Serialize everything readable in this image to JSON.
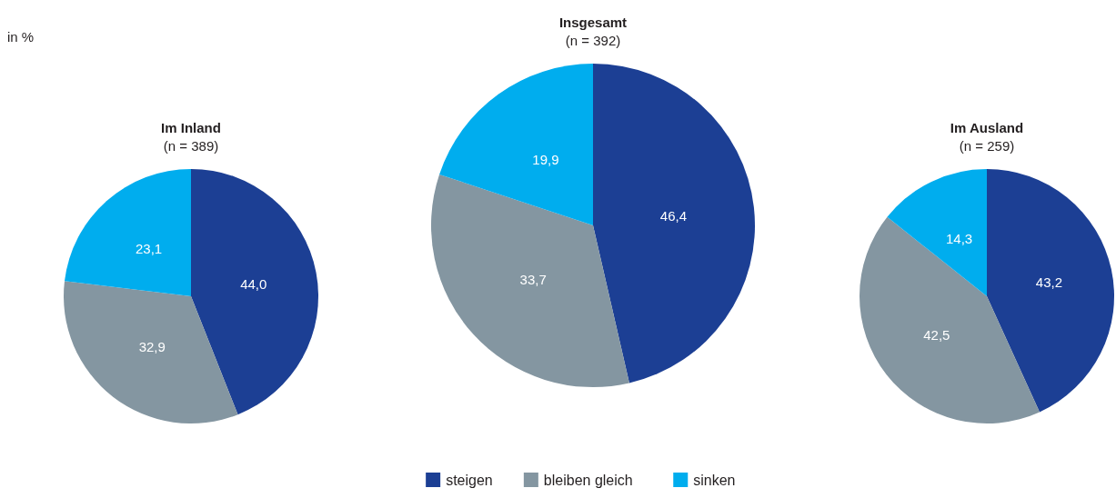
{
  "chart_data": [
    {
      "type": "pie",
      "title": "Im Inland",
      "subtitle": "(n = 389)",
      "categories": [
        null,
        null,
        null
      ],
      "values": [
        44.0,
        32.9,
        23.1
      ],
      "value_labels": [
        "44,0",
        "32,9",
        "23,1"
      ],
      "colors": [
        "#1c3f94",
        "#8496a1",
        "#00adee"
      ],
      "annotations": [
        "in %"
      ]
    },
    {
      "type": "pie",
      "title": "Insgesamt",
      "subtitle": "(n = 392)",
      "categories": [
        "steigen",
        "bleiben gleich",
        "sinken"
      ],
      "values": [
        46.4,
        33.7,
        19.9
      ],
      "value_labels": [
        "46,4",
        "33,7",
        "19,9"
      ],
      "colors": [
        "#1c3f94",
        "#8496a1",
        "#00adee"
      ],
      "legend": "bottom"
    },
    {
      "type": "pie",
      "title": "Im Ausland",
      "subtitle": "(n = 259)",
      "categories": [
        null,
        null,
        null
      ],
      "values": [
        43.2,
        42.5,
        14.3
      ],
      "value_labels": [
        "43,2",
        "42,5",
        "14,3"
      ],
      "colors": [
        "#1c3f94",
        "#8496a1",
        "#00adee"
      ]
    }
  ]
}
